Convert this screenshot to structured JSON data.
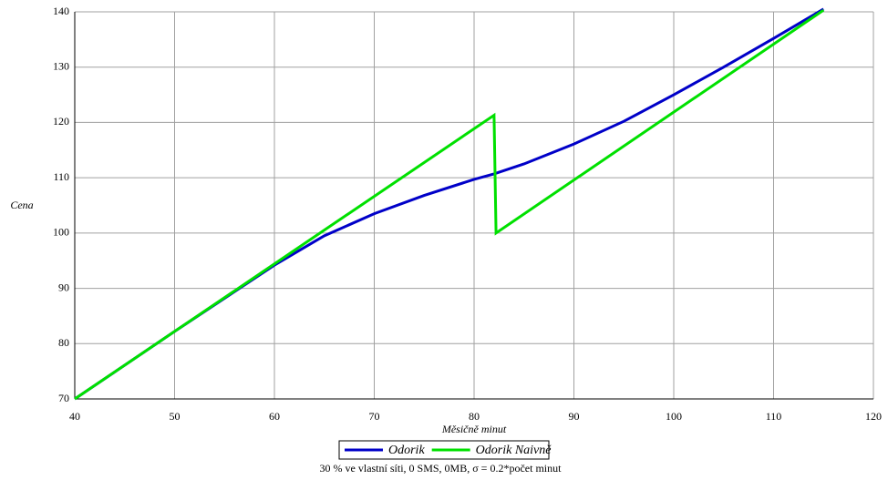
{
  "chart_data": {
    "type": "line",
    "x_label": "Měsičně minut",
    "y_label": "Cena",
    "caption": "30 % ve vlastní síti, 0 SMS, 0MB,  σ = 0.2*počet minut",
    "xlim": [
      40,
      120
    ],
    "xticks": [
      40,
      50,
      60,
      70,
      80,
      90,
      100,
      110,
      120
    ],
    "ylim": [
      70,
      140
    ],
    "yticks": [
      70,
      80,
      90,
      100,
      110,
      120,
      130,
      140
    ],
    "grid": true,
    "series": [
      {
        "name": "Odorik",
        "color": "#0000c8",
        "x": [
          40,
          50,
          60,
          65,
          70,
          75,
          80,
          82,
          85,
          90,
          95,
          100,
          105,
          110,
          115
        ],
        "values": [
          70,
          82.2,
          94.2,
          99.5,
          103.5,
          106.8,
          109.7,
          110.7,
          112.5,
          116.1,
          120.2,
          125,
          130,
          135.2,
          140.5
        ]
      },
      {
        "name": "Odorik Naivně",
        "color": "#00e000",
        "x": [
          40,
          82,
          82.2,
          115
        ],
        "values": [
          70,
          121.3,
          100,
          140.3
        ]
      }
    ]
  }
}
